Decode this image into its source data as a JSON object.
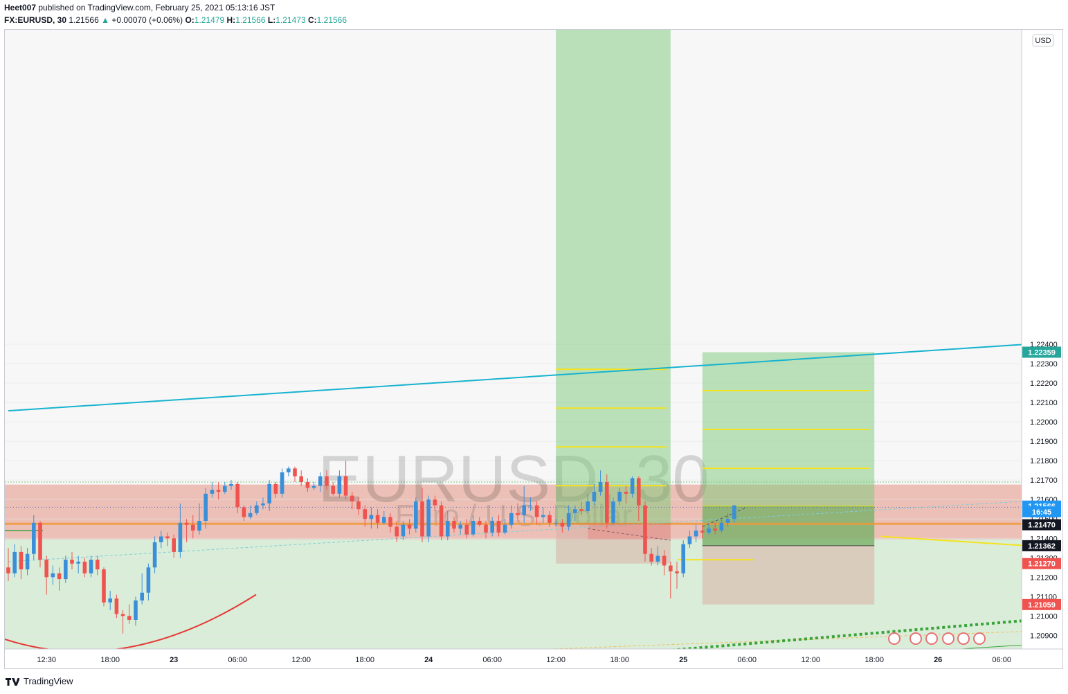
{
  "header": {
    "publisher": "Heet007",
    "published_text": "published on TradingView.com, February 25, 2021 05:13:16 JST",
    "symbol": "FX:EURUSD, 30",
    "last": "1.21566",
    "change": "+0.00070 (+0.06%)",
    "open_label": "O:",
    "open": "1.21479",
    "high_label": "H:",
    "high": "1.21566",
    "low_label": "L:",
    "low": "1.21473",
    "close_label": "C:",
    "close": "1.21566"
  },
  "footer": {
    "brand": "TradingView"
  },
  "colors": {
    "up": "#26a69a",
    "candle_up": "#3b8fd9",
    "candle_down": "#ef5350",
    "trendline": "#17b3cf",
    "target": "#f5e31f",
    "zone_red": "#e8b1a5",
    "zone_green": "#b7e0b5",
    "orange": "#f09a3a"
  },
  "chart_data": {
    "type": "candlestick",
    "title": "EURUSD, 30",
    "subtitle": "Euro / U.S. Dollar",
    "currency": "USD",
    "ylim": [
      1.2083,
      1.2402
    ],
    "y_ticks": [
      "1.20900",
      "1.21000",
      "1.21100",
      "1.21200",
      "1.21300",
      "1.21400",
      "1.21500",
      "1.21600",
      "1.21700",
      "1.21800",
      "1.21900",
      "1.22000",
      "1.22100",
      "1.22200",
      "1.22300",
      "1.22400"
    ],
    "y_tick_values": [
      1.209,
      1.21,
      1.211,
      1.212,
      1.213,
      1.214,
      1.215,
      1.216,
      1.217,
      1.218,
      1.219,
      1.22,
      1.221,
      1.222,
      1.223,
      1.224
    ],
    "x_ticks": [
      "12:30",
      "18:00",
      "23",
      "06:00",
      "12:00",
      "18:00",
      "24",
      "06:00",
      "12:00",
      "18:00",
      "25",
      "06:00",
      "12:00",
      "18:00",
      "26",
      "06:00"
    ],
    "x_tick_bar_index": [
      6,
      16,
      26,
      36,
      46,
      56,
      66,
      76,
      86,
      96,
      106,
      116,
      126,
      136,
      146,
      156
    ],
    "price_labels": [
      {
        "value": "1.22359",
        "price": 1.22359,
        "color": "#26a69a"
      },
      {
        "value": "1.21566",
        "price": 1.21566,
        "color": "#2196f3"
      },
      {
        "value": "16:45",
        "price": 1.21537,
        "color": "#2196f3"
      },
      {
        "value": "1.21470",
        "price": 1.2147,
        "color": "#131722"
      },
      {
        "value": "1.21362",
        "price": 1.21362,
        "color": "#131722"
      },
      {
        "value": "1.21270",
        "price": 1.2127,
        "color": "#ef5350"
      },
      {
        "value": "1.21059",
        "price": 1.21059,
        "color": "#ef5350"
      }
    ],
    "candles": [
      [
        1.2125,
        1.2122,
        1.2135,
        1.2118
      ],
      [
        1.2122,
        1.2133,
        1.2137,
        1.212
      ],
      [
        1.2133,
        1.2124,
        1.2136,
        1.2119
      ],
      [
        1.2124,
        1.2132,
        1.2135,
        1.2121
      ],
      [
        1.2132,
        1.2148,
        1.2152,
        1.2129
      ],
      [
        1.2148,
        1.2129,
        1.2149,
        1.2125
      ],
      [
        1.2129,
        1.212,
        1.2131,
        1.2111
      ],
      [
        1.212,
        1.2122,
        1.2126,
        1.2116
      ],
      [
        1.2122,
        1.2119,
        1.2125,
        1.2113
      ],
      [
        1.2119,
        1.2129,
        1.2131,
        1.2117
      ],
      [
        1.2129,
        1.2127,
        1.2133,
        1.2124
      ],
      [
        1.2127,
        1.2128,
        1.2131,
        1.2122
      ],
      [
        1.2128,
        1.2122,
        1.213,
        1.212
      ],
      [
        1.2122,
        1.2129,
        1.2131,
        1.212
      ],
      [
        1.2129,
        1.2124,
        1.2131,
        1.2121
      ],
      [
        1.2124,
        1.2107,
        1.2125,
        1.2105
      ],
      [
        1.2107,
        1.2109,
        1.2113,
        1.2103
      ],
      [
        1.2109,
        1.2101,
        1.2111,
        1.2099
      ],
      [
        1.2101,
        1.21,
        1.2103,
        1.2091
      ],
      [
        1.21,
        1.2098,
        1.2106,
        1.2096
      ],
      [
        1.2098,
        1.2108,
        1.211,
        1.2095
      ],
      [
        1.2108,
        1.2112,
        1.2122,
        1.2106
      ],
      [
        1.2112,
        1.2125,
        1.2127,
        1.2108
      ],
      [
        1.2125,
        1.2138,
        1.2141,
        1.2122
      ],
      [
        1.2138,
        1.2141,
        1.2144,
        1.2135
      ],
      [
        1.2141,
        1.214,
        1.2143,
        1.2136
      ],
      [
        1.214,
        1.2133,
        1.2142,
        1.213
      ],
      [
        1.2133,
        1.2148,
        1.2158,
        1.213
      ],
      [
        1.2148,
        1.2147,
        1.215,
        1.2138
      ],
      [
        1.2147,
        1.2144,
        1.2152,
        1.214
      ],
      [
        1.2144,
        1.2149,
        1.2158,
        1.2142
      ],
      [
        1.2149,
        1.2163,
        1.2166,
        1.2145
      ],
      [
        1.2163,
        1.2165,
        1.2169,
        1.2161
      ],
      [
        1.2165,
        1.2164,
        1.2169,
        1.216
      ],
      [
        1.2164,
        1.2167,
        1.2169,
        1.2163
      ],
      [
        1.2167,
        1.2168,
        1.217,
        1.2165
      ],
      [
        1.2168,
        1.2156,
        1.2169,
        1.2153
      ],
      [
        1.2156,
        1.2151,
        1.2157,
        1.2149
      ],
      [
        1.2151,
        1.2153,
        1.2157,
        1.215
      ],
      [
        1.2153,
        1.2157,
        1.2159,
        1.2152
      ],
      [
        1.2157,
        1.2158,
        1.2161,
        1.2155
      ],
      [
        1.2158,
        1.2168,
        1.217,
        1.2154
      ],
      [
        1.2168,
        1.2163,
        1.2169,
        1.2161
      ],
      [
        1.2163,
        1.2174,
        1.2176,
        1.2161
      ],
      [
        1.2174,
        1.2176,
        1.2177,
        1.2172
      ],
      [
        1.2176,
        1.2172,
        1.2177,
        1.2169
      ],
      [
        1.2172,
        1.2169,
        1.2175,
        1.2167
      ],
      [
        1.2169,
        1.2166,
        1.2171,
        1.2164
      ],
      [
        1.2166,
        1.2167,
        1.2169,
        1.2165
      ],
      [
        1.2167,
        1.2172,
        1.2174,
        1.2164
      ],
      [
        1.2172,
        1.2167,
        1.2175,
        1.2165
      ],
      [
        1.2167,
        1.2163,
        1.2169,
        1.2162
      ],
      [
        1.2163,
        1.2172,
        1.2175,
        1.2161
      ],
      [
        1.2172,
        1.2162,
        1.218,
        1.216
      ],
      [
        1.2162,
        1.2159,
        1.2164,
        1.2155
      ],
      [
        1.2159,
        1.2155,
        1.2161,
        1.2152
      ],
      [
        1.2155,
        1.215,
        1.2157,
        1.2146
      ],
      [
        1.215,
        1.2152,
        1.2156,
        1.2145
      ],
      [
        1.2152,
        1.2148,
        1.2155,
        1.2145
      ],
      [
        1.2148,
        1.2151,
        1.2154,
        1.2147
      ],
      [
        1.2151,
        1.2146,
        1.2153,
        1.2143
      ],
      [
        1.2146,
        1.2141,
        1.2149,
        1.2138
      ],
      [
        1.2141,
        1.2147,
        1.2149,
        1.2139
      ],
      [
        1.2147,
        1.2145,
        1.215,
        1.2142
      ],
      [
        1.2145,
        1.2159,
        1.2161,
        1.2143
      ],
      [
        1.2159,
        1.2141,
        1.2166,
        1.2138
      ],
      [
        1.2141,
        1.216,
        1.2162,
        1.2138
      ],
      [
        1.216,
        1.2157,
        1.2162,
        1.2154
      ],
      [
        1.2157,
        1.2141,
        1.2159,
        1.2139
      ],
      [
        1.2141,
        1.2149,
        1.2154,
        1.2139
      ],
      [
        1.2149,
        1.2145,
        1.2151,
        1.2143
      ],
      [
        1.2145,
        1.2147,
        1.2149,
        1.2142
      ],
      [
        1.2147,
        1.2142,
        1.215,
        1.214
      ],
      [
        1.2142,
        1.2149,
        1.2152,
        1.2141
      ],
      [
        1.2149,
        1.2147,
        1.2151,
        1.2146
      ],
      [
        1.2147,
        1.2143,
        1.2149,
        1.214
      ],
      [
        1.2143,
        1.2149,
        1.2151,
        1.2141
      ],
      [
        1.2149,
        1.2143,
        1.2152,
        1.2141
      ],
      [
        1.2143,
        1.2147,
        1.215,
        1.2142
      ],
      [
        1.2147,
        1.2153,
        1.2157,
        1.2145
      ],
      [
        1.2153,
        1.2152,
        1.2158,
        1.2149
      ],
      [
        1.2152,
        1.2157,
        1.2167,
        1.2148
      ],
      [
        1.2157,
        1.2157,
        1.2161,
        1.2154
      ],
      [
        1.2157,
        1.2151,
        1.2159,
        1.2147
      ],
      [
        1.2151,
        1.2152,
        1.2156,
        1.2148
      ],
      [
        1.2152,
        1.2148,
        1.2154,
        1.2146
      ],
      [
        1.2148,
        1.2148,
        1.215,
        1.2146
      ],
      [
        1.2148,
        1.2146,
        1.215,
        1.2143
      ],
      [
        1.2146,
        1.2153,
        1.2157,
        1.2144
      ],
      [
        1.2153,
        1.2155,
        1.2157,
        1.2149
      ],
      [
        1.2155,
        1.2154,
        1.2159,
        1.2152
      ],
      [
        1.2154,
        1.2159,
        1.2163,
        1.2153
      ],
      [
        1.2159,
        1.2164,
        1.2168,
        1.2157
      ],
      [
        1.2164,
        1.2169,
        1.2175,
        1.2162
      ],
      [
        1.2169,
        1.2148,
        1.2173,
        1.2145
      ],
      [
        1.2148,
        1.2159,
        1.2161,
        1.2147
      ],
      [
        1.2159,
        1.2164,
        1.2166,
        1.2157
      ],
      [
        1.2164,
        1.2163,
        1.2167,
        1.2158
      ],
      [
        1.2163,
        1.2171,
        1.2172,
        1.2161
      ],
      [
        1.2171,
        1.2157,
        1.2172,
        1.2149
      ],
      [
        1.2157,
        1.2132,
        1.2159,
        1.2128
      ],
      [
        1.2132,
        1.2128,
        1.2135,
        1.2126
      ],
      [
        1.2128,
        1.2131,
        1.2136,
        1.2126
      ],
      [
        1.2131,
        1.2126,
        1.2134,
        1.2121
      ],
      [
        1.2126,
        1.2123,
        1.2128,
        1.2109
      ],
      [
        1.2123,
        1.2122,
        1.2128,
        1.2114
      ],
      [
        1.2122,
        1.2137,
        1.2139,
        1.212
      ],
      [
        1.2137,
        1.2141,
        1.2144,
        1.2135
      ],
      [
        1.2141,
        1.2144,
        1.2147,
        1.2138
      ],
      [
        1.2144,
        1.2143,
        1.2147,
        1.214
      ],
      [
        1.2143,
        1.2145,
        1.2148,
        1.2142
      ],
      [
        1.2145,
        1.2144,
        1.2148,
        1.2142
      ],
      [
        1.2144,
        1.2148,
        1.215,
        1.2143
      ],
      [
        1.2148,
        1.215,
        1.2153,
        1.2146
      ],
      [
        1.215,
        1.2157,
        1.2157,
        1.2148
      ]
    ],
    "trendlines": [
      {
        "name": "cyan-trendline",
        "color": "#17b3cf",
        "points": [
          [
            0,
            1.22057
          ],
          [
            160,
            1.224
          ]
        ]
      },
      {
        "name": "yellow-descending",
        "color": "#f5e31f",
        "points": [
          [
            137,
            1.2141
          ],
          [
            160,
            1.21362
          ]
        ]
      }
    ],
    "zones": [
      {
        "name": "resistance-zone",
        "from": 1.21395,
        "to": 1.21677,
        "color": "#e8b1a5"
      },
      {
        "name": "support-zone",
        "from": 1.2083,
        "to": 1.21395,
        "color": "#d9edd8"
      }
    ],
    "positions": [
      {
        "name": "position-1",
        "x0": 86,
        "x1": 104,
        "entry": 1.21476,
        "target": 1.2402,
        "stop": 1.2127,
        "levels": [
          1.21671,
          1.21871,
          1.22071,
          1.22271
        ]
      },
      {
        "name": "position-2",
        "x0": 109,
        "x1": 136,
        "entry": 1.21566,
        "target": 1.22359,
        "stop": 1.21059,
        "levels": [
          1.21761,
          1.21961,
          1.22161
        ],
        "lower_entry": 1.21362
      }
    ],
    "horizontal_lines": [
      {
        "name": "orange-level",
        "price": 1.21475,
        "color": "#f09a3a"
      },
      {
        "name": "yellow-stop-line",
        "price": 1.2129,
        "x0": 105,
        "x1": 117,
        "color": "#f5e31f"
      }
    ]
  }
}
